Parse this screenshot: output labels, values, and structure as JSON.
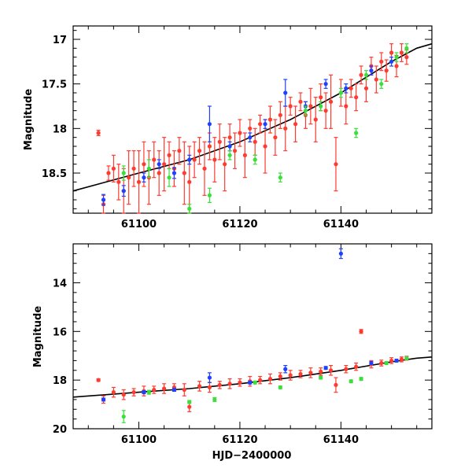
{
  "chart_data": [
    {
      "type": "scatter",
      "title": "",
      "xlabel": "",
      "ylabel": "Magnitude",
      "xlim": [
        61087,
        61158
      ],
      "ylim": [
        18.95,
        16.85
      ],
      "y_inverted": true,
      "x_ticks": [
        61100,
        61120,
        61140
      ],
      "x_tick_labels": [
        "61100",
        "61120",
        "61140"
      ],
      "y_ticks": [
        17,
        17.5,
        18,
        18.5
      ],
      "y_tick_labels": [
        "17",
        "17.5",
        "18",
        "18.5"
      ],
      "fit": {
        "label": "model fit",
        "x": [
          61087,
          61100,
          61110,
          61120,
          61130,
          61140,
          61150,
          61155,
          61158
        ],
        "y": [
          18.7,
          18.5,
          18.35,
          18.15,
          17.9,
          17.6,
          17.25,
          17.1,
          17.05
        ]
      },
      "series": [
        {
          "name": "red",
          "color": "#ff3b30",
          "points": [
            [
              61092,
              18.05,
              0.03
            ],
            [
              61093,
              18.85,
              0.1
            ],
            [
              61094,
              18.5,
              0.08
            ],
            [
              61095,
              18.45,
              0.15
            ],
            [
              61096,
              18.6,
              0.2
            ],
            [
              61097,
              18.7,
              0.25
            ],
            [
              61098,
              18.55,
              0.3
            ],
            [
              61099,
              18.45,
              0.2
            ],
            [
              61100,
              18.6,
              0.35
            ],
            [
              61101,
              18.4,
              0.25
            ],
            [
              61102,
              18.55,
              0.3
            ],
            [
              61103,
              18.35,
              0.2
            ],
            [
              61104,
              18.5,
              0.25
            ],
            [
              61105,
              18.4,
              0.3
            ],
            [
              61106,
              18.3,
              0.15
            ],
            [
              61107,
              18.45,
              0.2
            ],
            [
              61108,
              18.25,
              0.15
            ],
            [
              61109,
              18.5,
              0.35
            ],
            [
              61110,
              18.6,
              0.4
            ],
            [
              61111,
              18.35,
              0.2
            ],
            [
              61112,
              18.25,
              0.15
            ],
            [
              61113,
              18.45,
              0.3
            ],
            [
              61114,
              18.2,
              0.15
            ],
            [
              61115,
              18.35,
              0.25
            ],
            [
              61116,
              18.15,
              0.2
            ],
            [
              61117,
              18.4,
              0.3
            ],
            [
              61118,
              18.1,
              0.15
            ],
            [
              61119,
              18.25,
              0.2
            ],
            [
              61120,
              18.05,
              0.15
            ],
            [
              61121,
              18.3,
              0.25
            ],
            [
              61122,
              18.0,
              0.1
            ],
            [
              61123,
              18.15,
              0.15
            ],
            [
              61124,
              17.95,
              0.1
            ],
            [
              61125,
              18.2,
              0.3
            ],
            [
              61126,
              17.9,
              0.15
            ],
            [
              61127,
              18.1,
              0.2
            ],
            [
              61128,
              17.85,
              0.15
            ],
            [
              61129,
              18.0,
              0.25
            ],
            [
              61130,
              17.75,
              0.1
            ],
            [
              61131,
              17.95,
              0.2
            ],
            [
              61132,
              17.7,
              0.1
            ],
            [
              61133,
              17.85,
              0.15
            ],
            [
              61134,
              17.75,
              0.2
            ],
            [
              61135,
              17.9,
              0.25
            ],
            [
              61136,
              17.65,
              0.15
            ],
            [
              61137,
              17.8,
              0.2
            ],
            [
              61138,
              17.7,
              0.3
            ],
            [
              61139,
              18.4,
              0.3
            ],
            [
              61140,
              17.6,
              0.15
            ],
            [
              61141,
              17.75,
              0.2
            ],
            [
              61142,
              17.55,
              0.1
            ],
            [
              61143,
              17.65,
              0.15
            ],
            [
              61144,
              17.4,
              0.1
            ],
            [
              61145,
              17.55,
              0.15
            ],
            [
              61146,
              17.3,
              0.1
            ],
            [
              61147,
              17.45,
              0.15
            ],
            [
              61148,
              17.25,
              0.1
            ],
            [
              61149,
              17.35,
              0.12
            ],
            [
              61150,
              17.15,
              0.1
            ],
            [
              61151,
              17.3,
              0.12
            ],
            [
              61152,
              17.15,
              0.1
            ],
            [
              61153,
              17.2,
              0.08
            ]
          ]
        },
        {
          "name": "blue",
          "color": "#1e40ff",
          "points": [
            [
              61093,
              18.8,
              0.06
            ],
            [
              61097,
              18.7,
              0.06
            ],
            [
              61101,
              18.55,
              0.05
            ],
            [
              61104,
              18.4,
              0.05
            ],
            [
              61107,
              18.5,
              0.06
            ],
            [
              61110,
              18.35,
              0.05
            ],
            [
              61114,
              17.95,
              0.2
            ],
            [
              61118,
              18.2,
              0.05
            ],
            [
              61122,
              18.1,
              0.05
            ],
            [
              61125,
              17.95,
              0.05
            ],
            [
              61129,
              17.6,
              0.15
            ],
            [
              61133,
              17.75,
              0.05
            ],
            [
              61137,
              17.5,
              0.05
            ],
            [
              61141,
              17.55,
              0.05
            ],
            [
              61146,
              17.35,
              0.05
            ],
            [
              61150,
              17.25,
              0.05
            ]
          ]
        },
        {
          "name": "green",
          "color": "#3adf3a",
          "points": [
            [
              61097,
              18.5,
              0.08
            ],
            [
              61102,
              18.45,
              0.1
            ],
            [
              61106,
              18.55,
              0.1
            ],
            [
              61110,
              18.9,
              0.05
            ],
            [
              61114,
              18.75,
              0.08
            ],
            [
              61118,
              18.3,
              0.05
            ],
            [
              61123,
              18.35,
              0.05
            ],
            [
              61128,
              18.55,
              0.05
            ],
            [
              61133,
              17.8,
              0.05
            ],
            [
              61136,
              17.75,
              0.05
            ],
            [
              61140,
              17.6,
              0.05
            ],
            [
              61143,
              18.05,
              0.05
            ],
            [
              61145,
              17.4,
              0.05
            ],
            [
              61148,
              17.5,
              0.05
            ],
            [
              61151,
              17.2,
              0.05
            ],
            [
              61153,
              17.1,
              0.05
            ]
          ]
        }
      ]
    },
    {
      "type": "scatter",
      "title": "",
      "xlabel": "HJD−2400000",
      "ylabel": "Magnitude",
      "xlim": [
        61087,
        61158
      ],
      "ylim": [
        20,
        12.4
      ],
      "y_inverted": true,
      "x_ticks": [
        61100,
        61120,
        61140
      ],
      "x_tick_labels": [
        "61100",
        "61120",
        "61140"
      ],
      "y_ticks": [
        14,
        16,
        18,
        20
      ],
      "y_tick_labels": [
        "14",
        "16",
        "18",
        "20"
      ],
      "fit": {
        "label": "model fit",
        "x": [
          61087,
          61100,
          61110,
          61120,
          61130,
          61140,
          61150,
          61155,
          61158
        ],
        "y": [
          18.7,
          18.5,
          18.35,
          18.15,
          17.9,
          17.6,
          17.25,
          17.1,
          17.05
        ]
      },
      "series": [
        {
          "name": "red",
          "color": "#ff3b30",
          "points": [
            [
              61092,
              18.0,
              0.05
            ],
            [
              61093,
              18.8,
              0.15
            ],
            [
              61095,
              18.5,
              0.2
            ],
            [
              61097,
              18.6,
              0.2
            ],
            [
              61099,
              18.5,
              0.15
            ],
            [
              61101,
              18.45,
              0.2
            ],
            [
              61103,
              18.4,
              0.15
            ],
            [
              61105,
              18.35,
              0.2
            ],
            [
              61107,
              18.3,
              0.15
            ],
            [
              61109,
              18.4,
              0.25
            ],
            [
              61110,
              19.1,
              0.2
            ],
            [
              61112,
              18.25,
              0.2
            ],
            [
              61114,
              18.3,
              0.2
            ],
            [
              61116,
              18.2,
              0.15
            ],
            [
              61118,
              18.15,
              0.2
            ],
            [
              61120,
              18.1,
              0.15
            ],
            [
              61122,
              18.05,
              0.2
            ],
            [
              61124,
              18.0,
              0.15
            ],
            [
              61126,
              17.95,
              0.2
            ],
            [
              61128,
              17.85,
              0.15
            ],
            [
              61130,
              17.8,
              0.2
            ],
            [
              61132,
              17.75,
              0.15
            ],
            [
              61134,
              17.7,
              0.2
            ],
            [
              61136,
              17.65,
              0.15
            ],
            [
              61138,
              17.6,
              0.2
            ],
            [
              61139,
              18.2,
              0.3
            ],
            [
              61141,
              17.55,
              0.15
            ],
            [
              61143,
              17.45,
              0.15
            ],
            [
              61144,
              16.0,
              0.08
            ],
            [
              61146,
              17.35,
              0.15
            ],
            [
              61148,
              17.3,
              0.12
            ],
            [
              61150,
              17.2,
              0.12
            ],
            [
              61152,
              17.15,
              0.1
            ],
            [
              61153,
              17.1,
              0.08
            ]
          ]
        },
        {
          "name": "blue",
          "color": "#1e40ff",
          "points": [
            [
              61093,
              18.8,
              0.06
            ],
            [
              61101,
              18.5,
              0.06
            ],
            [
              61107,
              18.4,
              0.06
            ],
            [
              61114,
              17.9,
              0.2
            ],
            [
              61122,
              18.1,
              0.06
            ],
            [
              61129,
              17.55,
              0.15
            ],
            [
              61137,
              17.5,
              0.06
            ],
            [
              61140,
              12.8,
              0.2
            ],
            [
              61146,
              17.3,
              0.06
            ],
            [
              61151,
              17.2,
              0.06
            ]
          ]
        },
        {
          "name": "green",
          "color": "#3adf3a",
          "points": [
            [
              61097,
              19.5,
              0.25
            ],
            [
              61102,
              18.5,
              0.08
            ],
            [
              61110,
              18.9,
              0.06
            ],
            [
              61115,
              18.8,
              0.08
            ],
            [
              61123,
              18.1,
              0.06
            ],
            [
              61128,
              18.3,
              0.06
            ],
            [
              61136,
              17.9,
              0.06
            ],
            [
              61142,
              18.05,
              0.06
            ],
            [
              61144,
              17.95,
              0.06
            ],
            [
              61149,
              17.3,
              0.06
            ],
            [
              61153,
              17.1,
              0.06
            ]
          ]
        }
      ]
    }
  ]
}
